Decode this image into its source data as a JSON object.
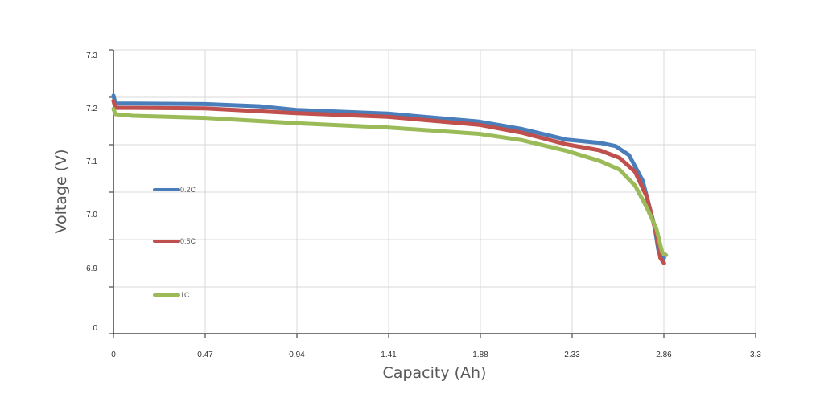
{
  "chart_data": {
    "type": "line",
    "xlabel": "Capacity (Ah)",
    "ylabel": "Voltage (V)",
    "x_ticks": [
      "0",
      "0.47",
      "0.94",
      "1.41",
      "1.88",
      "2.33",
      "2.86",
      "3.3"
    ],
    "y_ticks": [
      "0",
      "6.9",
      "7.0",
      "7.1",
      "7.2",
      "7.3"
    ],
    "y_ticks_note_free": true,
    "xlim": [
      0,
      3.3
    ],
    "grid": true,
    "legend_position": "left-inside",
    "series": [
      {
        "name": "0.2C",
        "color": "#4a7ebb",
        "points": [
          [
            0,
            7.235
          ],
          [
            0.01,
            7.22
          ],
          [
            0.1,
            7.22
          ],
          [
            0.47,
            7.219
          ],
          [
            0.75,
            7.215
          ],
          [
            0.94,
            7.208
          ],
          [
            1.41,
            7.201
          ],
          [
            1.88,
            7.186
          ],
          [
            2.1,
            7.172
          ],
          [
            2.33,
            7.152
          ],
          [
            2.5,
            7.146
          ],
          [
            2.58,
            7.14
          ],
          [
            2.65,
            7.123
          ],
          [
            2.72,
            7.075
          ],
          [
            2.78,
            6.99
          ],
          [
            2.8,
            6.945
          ],
          [
            2.82,
            6.925
          ],
          [
            2.83,
            6.93
          ]
        ]
      },
      {
        "name": "0.5C",
        "color": "#c0504d",
        "points": [
          [
            0,
            7.225
          ],
          [
            0.01,
            7.212
          ],
          [
            0.1,
            7.212
          ],
          [
            0.47,
            7.211
          ],
          [
            0.94,
            7.202
          ],
          [
            1.41,
            7.195
          ],
          [
            1.88,
            7.18
          ],
          [
            2.1,
            7.165
          ],
          [
            2.33,
            7.143
          ],
          [
            2.5,
            7.132
          ],
          [
            2.6,
            7.118
          ],
          [
            2.68,
            7.092
          ],
          [
            2.74,
            7.045
          ],
          [
            2.79,
            6.975
          ],
          [
            2.81,
            6.93
          ],
          [
            2.83,
            6.92
          ]
        ]
      },
      {
        "name": "1C",
        "color": "#9bbb59",
        "points": [
          [
            0,
            7.21
          ],
          [
            0.01,
            7.2
          ],
          [
            0.1,
            7.197
          ],
          [
            0.47,
            7.193
          ],
          [
            0.94,
            7.183
          ],
          [
            1.41,
            7.175
          ],
          [
            1.88,
            7.163
          ],
          [
            2.1,
            7.151
          ],
          [
            2.33,
            7.131
          ],
          [
            2.5,
            7.112
          ],
          [
            2.6,
            7.096
          ],
          [
            2.68,
            7.066
          ],
          [
            2.74,
            7.025
          ],
          [
            2.79,
            6.985
          ],
          [
            2.82,
            6.94
          ],
          [
            2.84,
            6.935
          ]
        ]
      }
    ]
  }
}
